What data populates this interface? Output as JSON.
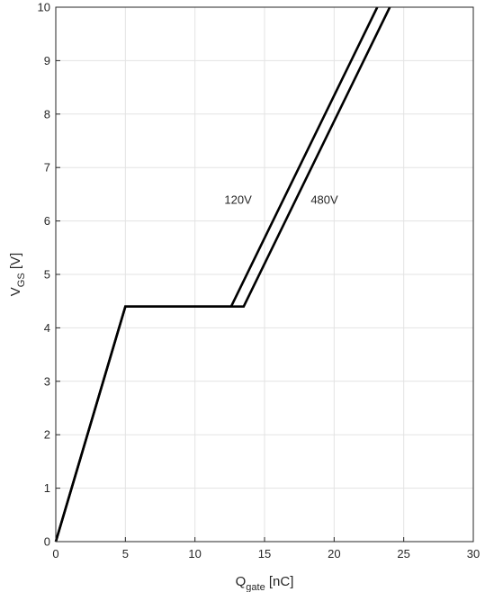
{
  "chart_data": {
    "type": "line",
    "xlabel": {
      "main": "Q",
      "sub": "gate",
      "unit": " [nC]"
    },
    "ylabel": {
      "main": "V",
      "sub": "GS",
      "unit": " [V]"
    },
    "xlim": [
      0,
      30
    ],
    "ylim": [
      0,
      10
    ],
    "xticks": [
      0,
      5,
      10,
      15,
      20,
      25,
      30
    ],
    "yticks": [
      0,
      1,
      2,
      3,
      4,
      5,
      6,
      7,
      8,
      9,
      10
    ],
    "grid": true,
    "series": [
      {
        "name": "120V",
        "color": "#000000",
        "x": [
          0,
          5,
          12.6,
          23.1
        ],
        "y": [
          0,
          4.4,
          4.4,
          10
        ]
      },
      {
        "name": "480V",
        "color": "#000000",
        "x": [
          0,
          5,
          13.5,
          24.0
        ],
        "y": [
          0,
          4.4,
          4.4,
          10
        ]
      }
    ],
    "annotations": [
      {
        "text": "120V",
        "x": 13.1,
        "y": 6.4
      },
      {
        "text": "480V",
        "x": 19.3,
        "y": 6.4
      }
    ]
  }
}
